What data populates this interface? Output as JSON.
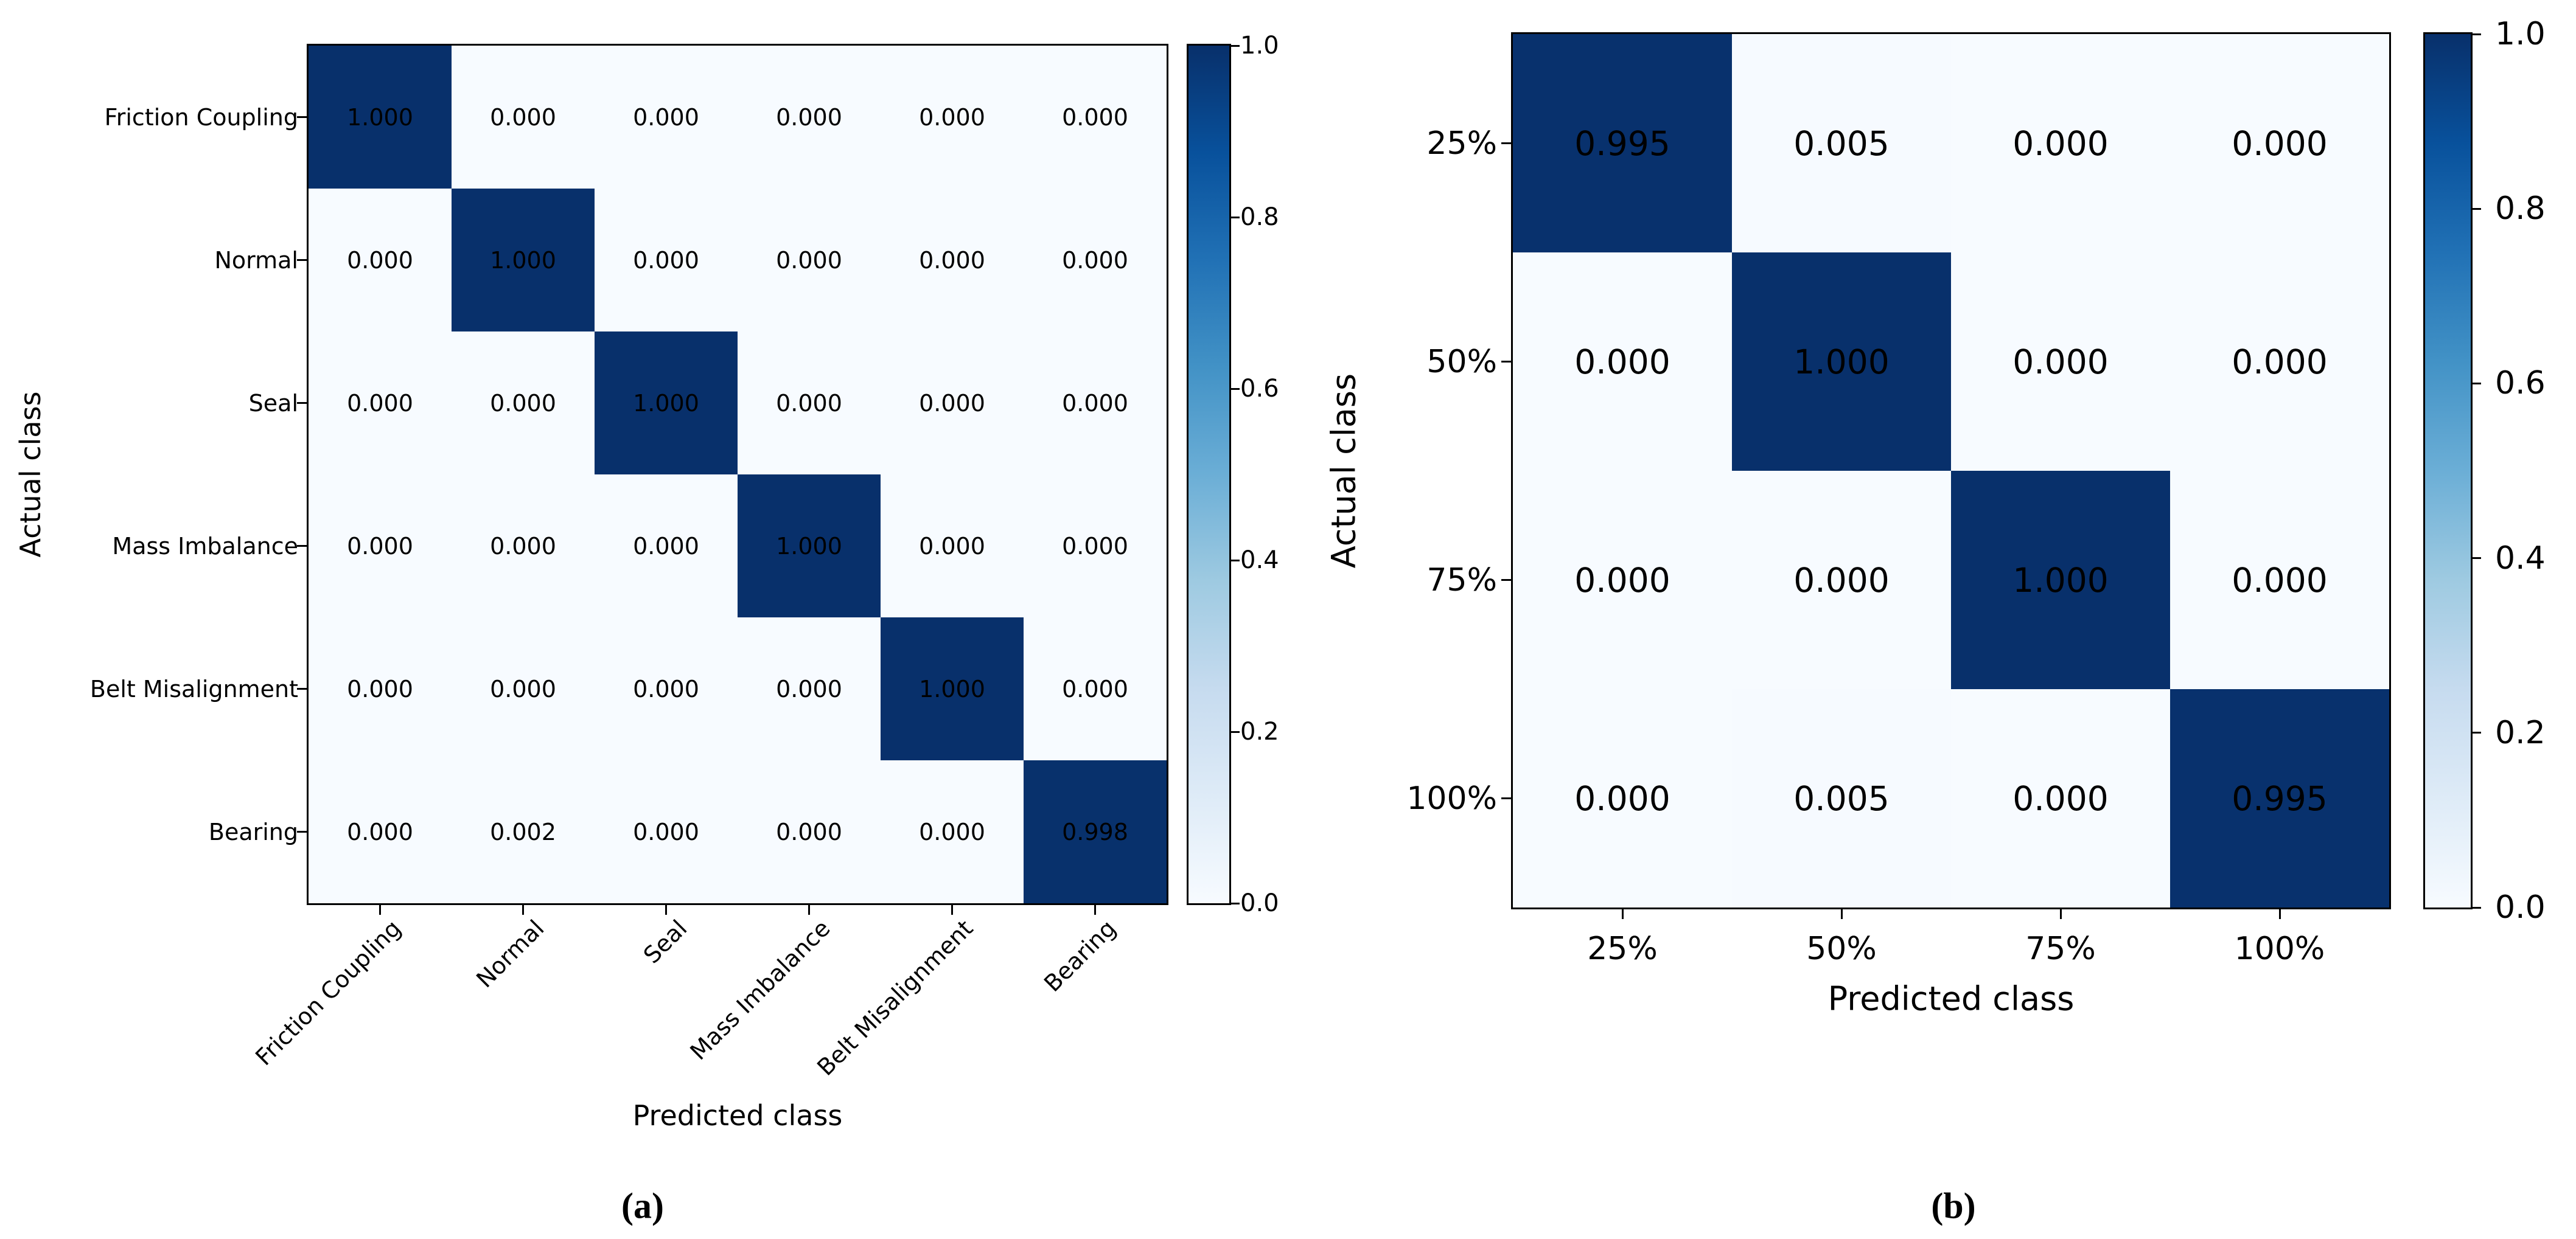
{
  "background": "#ffffff",
  "text_color": "#000000",
  "colormap_blues_stops": [
    "#f7fbff",
    "#deebf7",
    "#c6dbef",
    "#9ecae1",
    "#6baed6",
    "#4292c6",
    "#2171b5",
    "#08519c",
    "#08306b"
  ],
  "chart_data": [
    {
      "type": "heatmap",
      "panel": "a",
      "caption": "(a)",
      "xlabel": "Predicted class",
      "ylabel": "Actual class",
      "categories": [
        "Friction Coupling",
        "Normal",
        "Seal",
        "Mass Imbalance",
        "Belt Misalignment",
        "Bearing"
      ],
      "matrix": [
        [
          1.0,
          0.0,
          0.0,
          0.0,
          0.0,
          0.0
        ],
        [
          0.0,
          1.0,
          0.0,
          0.0,
          0.0,
          0.0
        ],
        [
          0.0,
          0.0,
          1.0,
          0.0,
          0.0,
          0.0
        ],
        [
          0.0,
          0.0,
          0.0,
          1.0,
          0.0,
          0.0
        ],
        [
          0.0,
          0.0,
          0.0,
          0.0,
          1.0,
          0.0
        ],
        [
          0.0,
          0.002,
          0.0,
          0.0,
          0.0,
          0.998
        ]
      ],
      "vmin": 0.0,
      "vmax": 1.0,
      "colormap": "Blues",
      "cell_value_decimals": 3,
      "x_tick_rotation_deg": 45,
      "colorbar_ticks": [
        "1.0",
        "0.8",
        "0.6",
        "0.4",
        "0.2",
        "0.0"
      ],
      "legend_position": "right-colorbar",
      "grid": false
    },
    {
      "type": "heatmap",
      "panel": "b",
      "caption": "(b)",
      "xlabel": "Predicted class",
      "ylabel": "Actual class",
      "categories": [
        "25%",
        "50%",
        "75%",
        "100%"
      ],
      "matrix": [
        [
          0.995,
          0.005,
          0.0,
          0.0
        ],
        [
          0.0,
          1.0,
          0.0,
          0.0
        ],
        [
          0.0,
          0.0,
          1.0,
          0.0
        ],
        [
          0.0,
          0.005,
          0.0,
          0.995
        ]
      ],
      "vmin": 0.0,
      "vmax": 1.0,
      "colormap": "Blues",
      "cell_value_decimals": 3,
      "x_tick_rotation_deg": 0,
      "colorbar_ticks": [
        "1.0",
        "0.8",
        "0.6",
        "0.4",
        "0.2",
        "0.0"
      ],
      "legend_position": "right-colorbar",
      "grid": false
    }
  ]
}
